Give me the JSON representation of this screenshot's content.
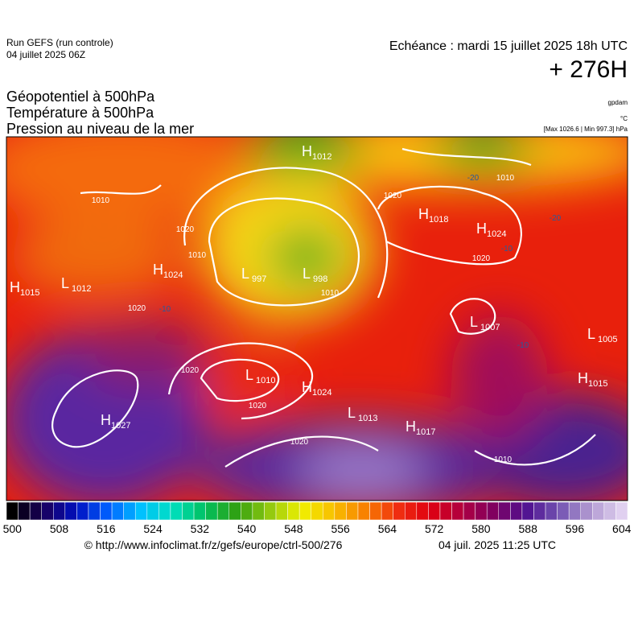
{
  "header": {
    "run": "Run GEFS (run controle)",
    "run_date": "04 juillet 2025 06Z",
    "echeance": "Echéance : mardi 15 juillet 2025 18h UTC",
    "lead": "+ 276H"
  },
  "titles": [
    "Géopotentiel à 500hPa",
    "Température à 500hPa",
    "Pression au niveau de la mer"
  ],
  "units": {
    "geopotential": "gpdam",
    "temperature": "°C",
    "pressure": "[Max 1026.6 | Min 997.3] hPa"
  },
  "centers": [
    {
      "type": "H",
      "value": 1012
    },
    {
      "type": "L",
      "value": 997
    },
    {
      "type": "L",
      "value": 998
    },
    {
      "type": "H",
      "value": 1024
    },
    {
      "type": "L",
      "value": 1012
    },
    {
      "type": "H",
      "value": 1015
    },
    {
      "type": "H",
      "value": 1018
    },
    {
      "type": "H",
      "value": 1024
    },
    {
      "type": "L",
      "value": 1007
    },
    {
      "type": "L",
      "value": 1005
    },
    {
      "type": "H",
      "value": 1015
    },
    {
      "type": "L",
      "value": 1010
    },
    {
      "type": "H",
      "value": 1024
    },
    {
      "type": "L",
      "value": 1013
    },
    {
      "type": "H",
      "value": 1017
    },
    {
      "type": "H",
      "value": 1027
    }
  ],
  "isobar_labels": [
    1010,
    1020,
    1010,
    1010,
    1020,
    1010,
    1020,
    1020,
    1020,
    1020,
    1020,
    1010
  ],
  "isotherm_labels": [
    -20,
    -20,
    -10,
    -10,
    -10
  ],
  "colorbar_labels": [
    500,
    508,
    516,
    524,
    532,
    540,
    548,
    556,
    564,
    572,
    580,
    588,
    596,
    604
  ],
  "footer": {
    "source": "© http://www.infoclimat.fr/z/gefs/europe/ctrl-500/276",
    "time": "04 juil. 2025 11:25 UTC"
  }
}
